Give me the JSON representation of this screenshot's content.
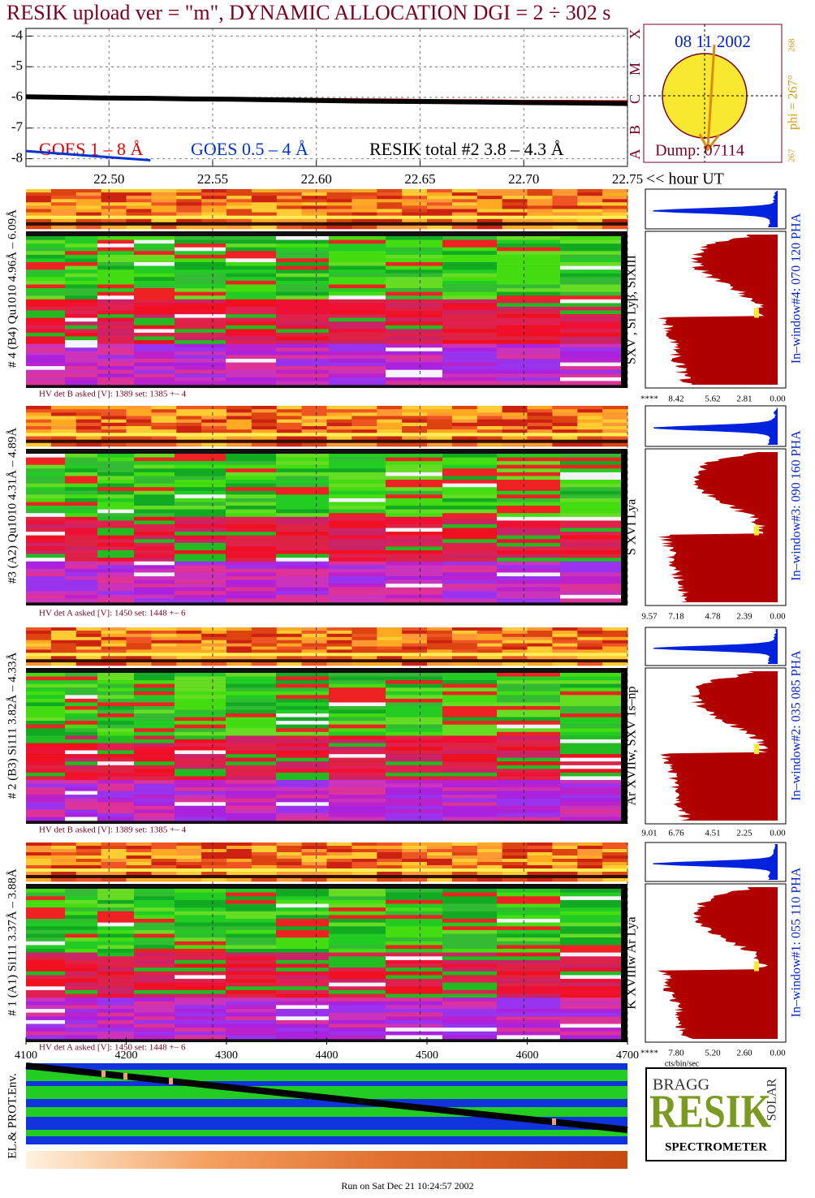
{
  "title": "RESIK upload ver = \"m\", DYNAMIC ALLOCATION  DGI =   2 ÷ 302 s",
  "chart_data": {
    "type": "line",
    "x": [
      22.46,
      22.48,
      22.5,
      22.52,
      22.54,
      22.56,
      22.58,
      22.6,
      22.62,
      22.64,
      22.66,
      22.68,
      22.7,
      22.72,
      22.74,
      22.75
    ],
    "series": [
      {
        "name": "GOES 1 – 8 Å",
        "color": "#e00000",
        "values": [
          -6.0,
          -6.0,
          -6.02,
          -6.03,
          -6.04,
          -6.05,
          -6.05,
          -6.06,
          -6.07,
          -6.08,
          -6.1,
          -6.1,
          -6.12,
          -6.12,
          -6.13,
          -6.13
        ]
      },
      {
        "name": "GOES 0.5 – 4 Å",
        "color": "#0033cc",
        "values": [
          -7.75,
          -7.85,
          -7.95,
          -8.05,
          null,
          null,
          null,
          null,
          null,
          null,
          null,
          null,
          null,
          null,
          null,
          null
        ]
      },
      {
        "name": "RESIK total #2  3.8 – 4.3 Å",
        "color": "#000000",
        "values": [
          -5.98,
          -6.0,
          -6.02,
          -6.03,
          -6.05,
          -6.06,
          -6.08,
          -6.1,
          -6.12,
          -6.13,
          -6.14,
          -6.15,
          -6.17,
          -6.18,
          -6.19,
          -6.2
        ]
      }
    ],
    "xlim": [
      22.46,
      22.75
    ],
    "xticks": [
      {
        "value": 22.5,
        "label": "22.50"
      },
      22.55,
      {
        "value": 22.6,
        "label": "22.60"
      },
      22.65,
      {
        "value": 22.7,
        "label": "22.70"
      },
      22.75
    ],
    "x_label": "<< hour UT",
    "ylim": [
      -8.25,
      -3.75
    ],
    "yticks": [
      -8,
      -7,
      -6,
      -5,
      -4
    ],
    "grid": true
  },
  "sun": {
    "date": "08 11 2002",
    "dump": "Dump: 07114",
    "phi": "phi = 267°",
    "phi_sup": "268",
    "phi_low": "267",
    "classes": [
      "X",
      "M",
      "C",
      "B",
      "A"
    ]
  },
  "channels": [
    {
      "label": "# 4 (B4) Qu1010 4.96Å – 6.09Å",
      "lines": "SXV , Si Lyβ, SiXIII",
      "window": "In–window#4:  070 120 PHA",
      "hv": "HV det B asked [V]:  1389 set:  1385 +–    4",
      "hist_ticks": [
        "****",
        "8.42",
        "5.62",
        "2.81",
        "0.00"
      ]
    },
    {
      "label": "#3 (A2) Qu1010  4.31Å – 4.89Å",
      "lines": "S XVI Lya",
      "window": "In–window#3:  090 160 PHA",
      "hv": "HV det A asked [V]:  1450 set:  1448 +–    6",
      "hist_ticks": [
        "9.57",
        "7.18",
        "4.78",
        "2.39",
        "0.00"
      ]
    },
    {
      "label": "# 2 (B3) Si111  3.82Å – 4.33Å",
      "lines": "Ar XVIIw,  SXV 1s–np",
      "window": "In–window#2:  035 085 PHA",
      "hv": "HV det B asked [V]:  1389 set:  1385 +–    4",
      "hist_ticks": [
        "9.01",
        "6.76",
        "4.51",
        "2.25",
        "0.00"
      ]
    },
    {
      "label": "# 1 (A1) Si111  3.37Å – 3.88Å",
      "lines": "K XVIIIw  Ar Lya",
      "window": "In–window#1:  055 110 PHA",
      "hv": "HV det A asked [V]:  1450 set:  1448 +–    6",
      "hist_ticks": [
        "****",
        "7.80",
        "5.20",
        "2.60",
        "0.00"
      ]
    }
  ],
  "hist_unit": "cts/bin/sec",
  "bottom_axis": {
    "lim": [
      4100,
      4700
    ],
    "ticks": [
      4100,
      4200,
      4300,
      4400,
      4500,
      4600,
      4700
    ]
  },
  "env_label": "EL.& PROT.Env.",
  "logo": {
    "bragg": "BRAGG",
    "resik": "RESIK",
    "solar": "SOLAR",
    "spectrometer": "SPECTROMETER"
  },
  "footer": "Run on Sat Dec 21 10:24:57 2002"
}
